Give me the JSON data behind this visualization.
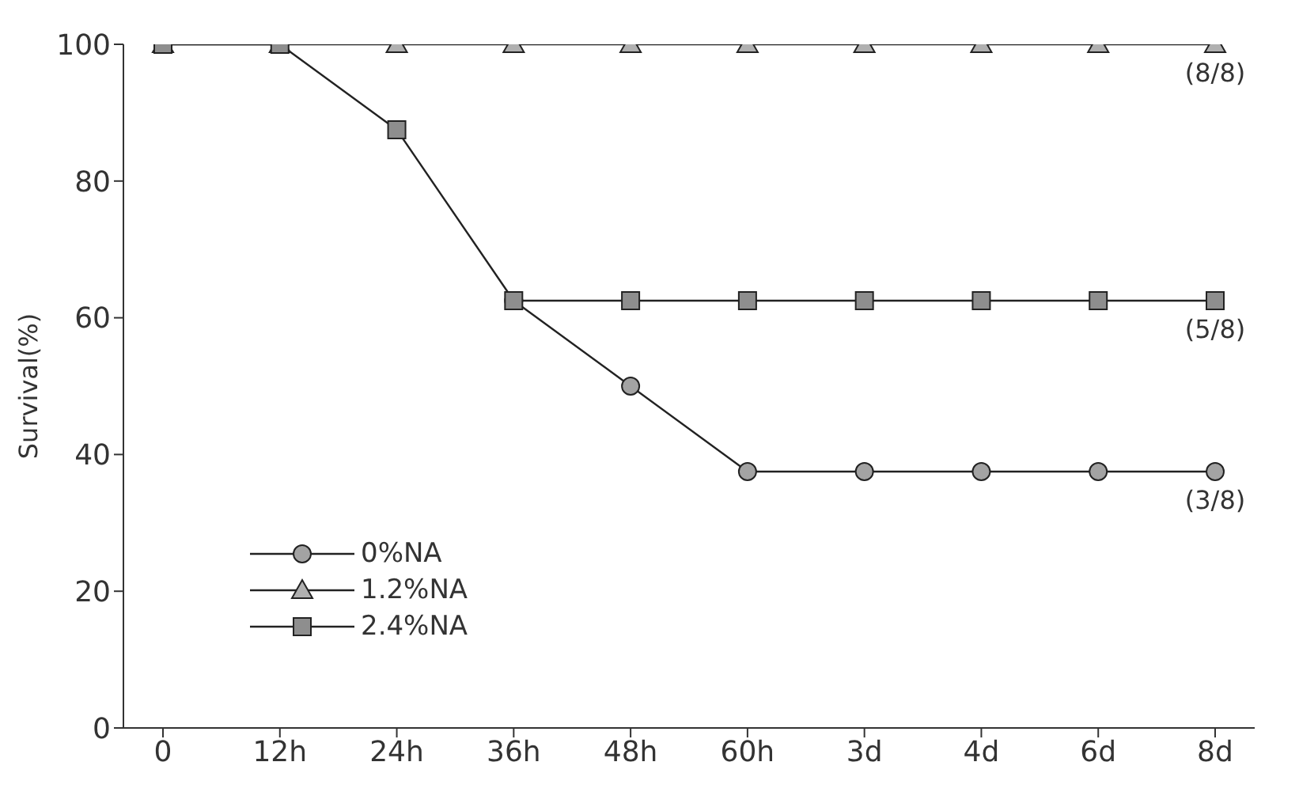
{
  "chart_data": {
    "type": "line",
    "ylabel": "Survival(%)",
    "categories": [
      "0",
      "12h",
      "24h",
      "36h",
      "48h",
      "60h",
      "3d",
      "4d",
      "6d",
      "8d"
    ],
    "series": [
      {
        "name": "0%NA",
        "color": "#a3a3a3",
        "marker": "circle",
        "values": [
          null,
          null,
          null,
          62.5,
          50,
          37.5,
          37.5,
          37.5,
          37.5,
          37.5
        ]
      },
      {
        "name": "1.2%NA",
        "color": "#b0b0b0",
        "marker": "triangle",
        "values": [
          100,
          100,
          100,
          100,
          100,
          100,
          100,
          100,
          100,
          100
        ]
      },
      {
        "name": "2.4%NA",
        "color": "#8e8e8e",
        "marker": "square",
        "values": [
          100,
          100,
          87.5,
          62.5,
          62.5,
          62.5,
          62.5,
          62.5,
          62.5,
          62.5
        ]
      }
    ],
    "ylim": [
      0,
      100
    ],
    "yticks": [
      0,
      20,
      40,
      60,
      80,
      100
    ],
    "annotations": [
      {
        "text": "(8/8)",
        "x": "8d",
        "y": 100
      },
      {
        "text": "(5/8)",
        "x": "8d",
        "y": 62.5
      },
      {
        "text": "(3/8)",
        "x": "8d",
        "y": 37.5
      }
    ],
    "legend": "bottom left",
    "grid": false,
    "line_style": "solid"
  }
}
